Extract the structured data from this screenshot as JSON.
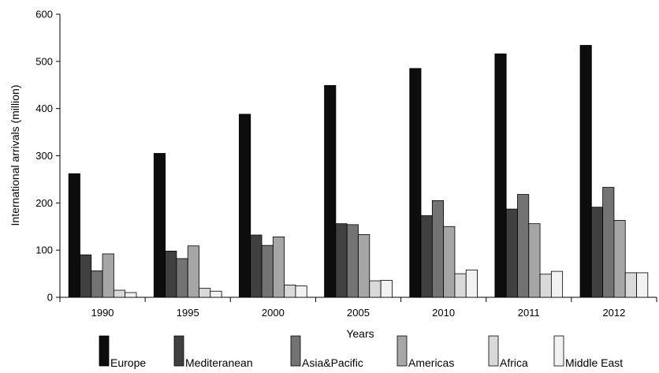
{
  "chart_data": {
    "type": "bar",
    "title": "",
    "xlabel": "Years",
    "ylabel": "International arrivals (million)",
    "ylim": [
      0,
      600
    ],
    "yticks": [
      0,
      100,
      200,
      300,
      400,
      500,
      600
    ],
    "grid": false,
    "legend_position": "bottom",
    "categories": [
      "1990",
      "1995",
      "2000",
      "2005",
      "2010",
      "2011",
      "2012"
    ],
    "series": [
      {
        "name": "Europe",
        "color": "#0d0d0d",
        "values": [
          262,
          305,
          388,
          449,
          485,
          516,
          534
        ]
      },
      {
        "name": "Mediteranean",
        "color": "#404040",
        "values": [
          90,
          98,
          132,
          156,
          173,
          187,
          191
        ]
      },
      {
        "name": "Asia&Pacific",
        "color": "#737373",
        "values": [
          56,
          82,
          110,
          154,
          205,
          218,
          233
        ]
      },
      {
        "name": "Americas",
        "color": "#a6a6a6",
        "values": [
          92,
          109,
          128,
          133,
          150,
          156,
          163
        ]
      },
      {
        "name": "Africa",
        "color": "#d9d9d9",
        "values": [
          15,
          19,
          26,
          35,
          50,
          49,
          52
        ]
      },
      {
        "name": "Middle East",
        "color": "#f2f2f2",
        "values": [
          10,
          13,
          24,
          36,
          58,
          55,
          52
        ]
      }
    ]
  }
}
